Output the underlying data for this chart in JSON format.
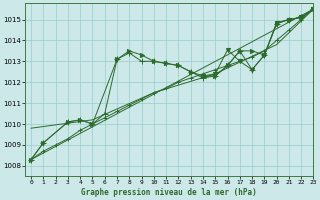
{
  "title": "Graphe pression niveau de la mer (hPa)",
  "bg_color": "#cce8e8",
  "grid_color": "#99cccc",
  "line_color": "#2d6a2d",
  "xlim": [
    -0.5,
    23
  ],
  "ylim": [
    1007.5,
    1015.8
  ],
  "xticks": [
    0,
    1,
    2,
    3,
    4,
    5,
    6,
    7,
    8,
    9,
    10,
    11,
    12,
    13,
    14,
    15,
    16,
    17,
    18,
    19,
    20,
    21,
    22,
    23
  ],
  "yticks": [
    1008,
    1009,
    1010,
    1011,
    1012,
    1013,
    1014,
    1015
  ],
  "series": [
    {
      "x": [
        0,
        1,
        2,
        3,
        4,
        5,
        6,
        7,
        8,
        9,
        10,
        11,
        12,
        13,
        14,
        15,
        16,
        17,
        18,
        19,
        20,
        21,
        22,
        23
      ],
      "y": [
        1008.3,
        1008.7,
        1009.0,
        1009.3,
        1009.7,
        1010.0,
        1010.3,
        1010.6,
        1010.9,
        1011.2,
        1011.5,
        1011.7,
        1012.0,
        1012.2,
        1012.4,
        1012.6,
        1012.8,
        1013.0,
        1013.2,
        1013.5,
        1014.0,
        1014.5,
        1015.0,
        1015.5
      ],
      "marker": "+",
      "ms": 3
    },
    {
      "x": [
        0,
        1,
        3,
        4,
        5,
        7,
        8,
        9,
        10,
        11,
        12,
        13,
        14,
        15,
        16,
        17,
        18,
        19,
        20,
        21,
        22,
        23
      ],
      "y": [
        1008.3,
        1009.1,
        1010.1,
        1010.2,
        1010.0,
        1013.1,
        1013.5,
        1013.3,
        1013.0,
        1012.9,
        1012.8,
        1012.5,
        1012.3,
        1012.3,
        1012.8,
        1013.5,
        1013.5,
        1013.3,
        1014.8,
        1015.0,
        1015.1,
        1015.5
      ],
      "marker": ">",
      "ms": 3
    },
    {
      "x": [
        0,
        1,
        3,
        4,
        5,
        6,
        7,
        8,
        9,
        10,
        11,
        12,
        13,
        14,
        15,
        16,
        17,
        18,
        19,
        20,
        21,
        22,
        23
      ],
      "y": [
        1008.3,
        1009.1,
        1010.1,
        1010.2,
        1010.0,
        1010.5,
        1013.1,
        1013.4,
        1013.0,
        1013.0,
        1012.9,
        1012.8,
        1012.5,
        1012.2,
        1012.3,
        1012.8,
        1013.5,
        1012.6,
        1013.3,
        1014.8,
        1015.0,
        1015.1,
        1015.5
      ],
      "marker": "+",
      "ms": 4
    },
    {
      "x": [
        0,
        23
      ],
      "y": [
        1008.3,
        1015.5
      ],
      "marker": "None",
      "ms": 0
    },
    {
      "x": [
        0,
        5,
        10,
        15,
        20,
        23
      ],
      "y": [
        1009.8,
        1010.2,
        1011.5,
        1012.4,
        1013.8,
        1015.5
      ],
      "marker": "None",
      "ms": 0
    },
    {
      "x": [
        14,
        15,
        16,
        17,
        18,
        19,
        20,
        21,
        22,
        23
      ],
      "y": [
        1012.3,
        1012.4,
        1013.55,
        1013.0,
        1012.6,
        1013.3,
        1014.85,
        1015.0,
        1015.1,
        1015.5
      ],
      "marker": "v",
      "ms": 3
    }
  ]
}
